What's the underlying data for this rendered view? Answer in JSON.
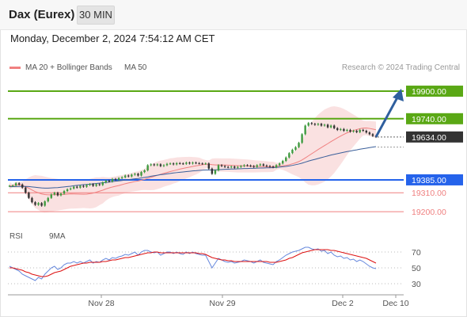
{
  "header": {
    "instrument": "Dax (Eurex)",
    "timeframe": "30 MIN",
    "datetime": "Monday, December 2, 2024 7:54:12 AM CET"
  },
  "legend": {
    "ma20_label": "MA 20 + Bollinger Bands",
    "ma20_color": "#f08080",
    "ma50_label": "MA 50",
    "ma50_color": "#3a5f9a"
  },
  "credit": "Research © 2024 Trading Central",
  "rsi_legend": {
    "rsi_label": "RSI",
    "rsi_color": "#6688dd",
    "ma_label": "9MA",
    "ma_color": "#dd1111"
  },
  "colors": {
    "resistance": "#5aa815",
    "support": "#2563eb",
    "target": "#ef7f7f",
    "current": "#333333",
    "arrow": "#2f5f9e"
  },
  "chart_data": [
    {
      "type": "line",
      "title": "",
      "x_ticks": [
        "Nov 28",
        "Nov 29",
        "Dec 2",
        "Dec 10"
      ],
      "ylim": [
        19150,
        19960
      ],
      "levels": [
        {
          "label": "19900.00",
          "value": 19900,
          "kind": "resistance"
        },
        {
          "label": "19740.00",
          "value": 19740,
          "kind": "resistance"
        },
        {
          "label": "19634.00",
          "value": 19634,
          "kind": "current"
        },
        {
          "label": "19385.00",
          "value": 19385,
          "kind": "support"
        },
        {
          "label": "19310.00",
          "value": 19310,
          "kind": "target"
        },
        {
          "label": "19200.00",
          "value": 19200,
          "kind": "target"
        }
      ],
      "price_close": [
        19350,
        19352,
        19365,
        19358,
        19340,
        19310,
        19280,
        19255,
        19240,
        19250,
        19235,
        19260,
        19280,
        19300,
        19310,
        19295,
        19305,
        19320,
        19330,
        19335,
        19345,
        19340,
        19350,
        19345,
        19355,
        19360,
        19350,
        19360,
        19355,
        19370,
        19380,
        19375,
        19390,
        19385,
        19395,
        19400,
        19410,
        19405,
        19415,
        19420,
        19410,
        19430,
        19440,
        19470,
        19475,
        19470,
        19475,
        19465,
        19470,
        19478,
        19480,
        19475,
        19482,
        19480,
        19478,
        19485,
        19480,
        19485,
        19482,
        19480,
        19478,
        19480,
        19450,
        19420,
        19440,
        19470,
        19465,
        19460,
        19458,
        19462,
        19455,
        19460,
        19465,
        19470,
        19468,
        19465,
        19460,
        19470,
        19475,
        19468,
        19465,
        19462,
        19458,
        19470,
        19480,
        19495,
        19515,
        19540,
        19560,
        19575,
        19600,
        19650,
        19700,
        19715,
        19710,
        19705,
        19710,
        19700,
        19705,
        19690,
        19700,
        19685,
        19675,
        19680,
        19670,
        19675,
        19665,
        19670,
        19662,
        19675,
        19670,
        19660,
        19650,
        19640,
        19634
      ],
      "ma50": [
        19345,
        19345,
        19346,
        19347,
        19347,
        19347,
        19346,
        19344,
        19342,
        19340,
        19338,
        19337,
        19337,
        19338,
        19339,
        19340,
        19342,
        19344,
        19346,
        19348,
        19351,
        19353,
        19355,
        19357,
        19358,
        19360,
        19362,
        19364,
        19366,
        19368,
        19370,
        19372,
        19375,
        19377,
        19379,
        19381,
        19384,
        19386,
        19389,
        19391,
        19393,
        19396,
        19399,
        19402,
        19406,
        19409,
        19412,
        19415,
        19417,
        19420,
        19422,
        19425,
        19427,
        19429,
        19431,
        19433,
        19435,
        19437,
        19438,
        19440,
        19441,
        19442,
        19442,
        19442,
        19443,
        19444,
        19445,
        19446,
        19447,
        19448,
        19448,
        19449,
        19450,
        19451,
        19451,
        19452,
        19452,
        19453,
        19454,
        19454,
        19455,
        19455,
        19456,
        19457,
        19459,
        19461,
        19463,
        19466,
        19469,
        19473,
        19477,
        19482,
        19488,
        19494,
        19499,
        19504,
        19509,
        19514,
        19519,
        19524,
        19529,
        19533,
        19537,
        19541,
        19545,
        19549,
        19552,
        19556,
        19559,
        19563,
        19566,
        19569,
        19572,
        19575,
        19578
      ],
      "rsi_ylim": [
        20,
        80
      ],
      "rsi_ticks": [
        70,
        50,
        30
      ],
      "rsi": [
        52,
        50,
        48,
        46,
        42,
        40,
        38,
        36,
        34,
        38,
        36,
        42,
        46,
        50,
        52,
        48,
        50,
        54,
        56,
        56,
        58,
        56,
        58,
        56,
        58,
        60,
        56,
        58,
        57,
        60,
        62,
        60,
        63,
        62,
        64,
        65,
        67,
        66,
        68,
        70,
        66,
        70,
        72,
        72,
        70,
        69,
        70,
        66,
        68,
        70,
        70,
        68,
        70,
        68,
        67,
        70,
        68,
        70,
        68,
        67,
        66,
        66,
        58,
        50,
        56,
        62,
        60,
        58,
        57,
        58,
        56,
        57,
        58,
        60,
        59,
        58,
        56,
        58,
        60,
        57,
        56,
        55,
        54,
        58,
        60,
        63,
        66,
        68,
        70,
        71,
        72,
        74,
        76,
        76,
        74,
        73,
        74,
        71,
        72,
        68,
        70,
        66,
        64,
        65,
        62,
        63,
        60,
        61,
        58,
        60,
        58,
        55,
        52,
        50,
        49
      ],
      "rsi_ma": [
        50,
        50,
        49,
        48,
        47,
        45,
        44,
        42,
        41,
        40,
        39,
        39,
        40,
        42,
        44,
        45,
        46,
        48,
        50,
        52,
        53,
        54,
        55,
        56,
        56,
        57,
        57,
        57,
        57,
        58,
        58,
        59,
        60,
        60,
        61,
        62,
        63,
        63,
        64,
        65,
        66,
        67,
        68,
        69,
        69,
        70,
        70,
        69,
        69,
        69,
        69,
        69,
        69,
        69,
        69,
        69,
        69,
        69,
        69,
        68,
        68,
        67,
        65,
        63,
        62,
        61,
        60,
        60,
        59,
        59,
        58,
        58,
        58,
        58,
        58,
        58,
        58,
        58,
        58,
        58,
        58,
        57,
        57,
        57,
        58,
        59,
        60,
        62,
        63,
        65,
        67,
        69,
        70,
        71,
        72,
        73,
        73,
        73,
        73,
        73,
        72,
        72,
        71,
        70,
        69,
        68,
        67,
        66,
        65,
        64,
        63,
        62,
        60,
        58,
        56
      ]
    }
  ]
}
